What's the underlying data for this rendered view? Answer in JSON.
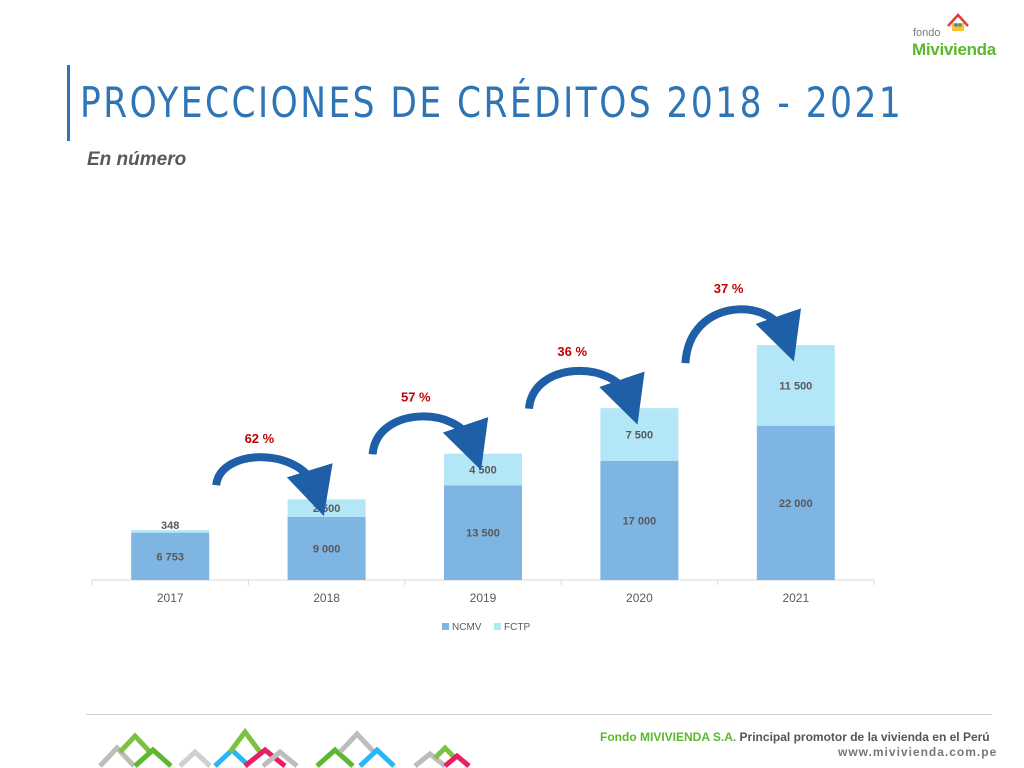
{
  "slide": {
    "title": "PROYECCIONES DE CRÉDITOS 2018 - 2021",
    "subtitle": "En número"
  },
  "logo": {
    "small": "fondo",
    "brand": "Mivivienda",
    "icon": "house-family-icon"
  },
  "chart_data": {
    "type": "bar",
    "stacked": true,
    "categories": [
      "2017",
      "2018",
      "2019",
      "2020",
      "2021"
    ],
    "series": [
      {
        "name": "NCMV",
        "values": [
          6753,
          9000,
          13500,
          17000,
          22000
        ],
        "labels": [
          "6 753",
          "9 000",
          "13 500",
          "17 000",
          "22 000"
        ],
        "color": "#7eb5e2"
      },
      {
        "name": "FCTP",
        "values": [
          348,
          2500,
          4500,
          7500,
          11500
        ],
        "labels": [
          "348",
          "2 500",
          "4 500",
          "7 500",
          "11 500"
        ],
        "color": "#b3e6f7"
      }
    ],
    "growth_annotations": [
      "62 %",
      "57 %",
      "36 %",
      "37 %"
    ],
    "annotation_color": "#c00000",
    "arrow_color": "#1f5fa8",
    "legend_position": "bottom",
    "ylim": [
      0,
      33500
    ],
    "grid": false
  },
  "footer": {
    "company": "Fondo MIVIVIENDA S.A.",
    "tagline": " Principal promotor de la vivienda en el Perú",
    "url": "www.mivivienda.com.pe"
  }
}
